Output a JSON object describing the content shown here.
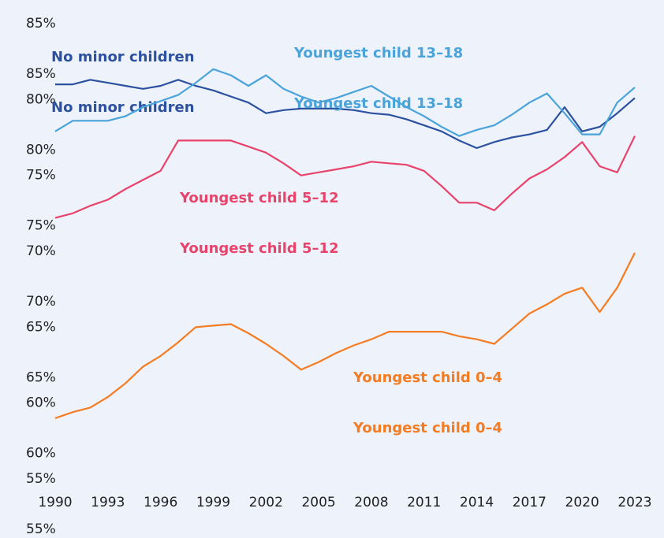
{
  "chart_data": {
    "type": "line",
    "x": [
      1990,
      1991,
      1992,
      1993,
      1994,
      1995,
      1996,
      1997,
      1998,
      1999,
      2000,
      2001,
      2002,
      2003,
      2004,
      2005,
      2006,
      2007,
      2008,
      2009,
      2010,
      2011,
      2012,
      2013,
      2014,
      2015,
      2016,
      2017,
      2018,
      2019,
      2020,
      2021,
      2022,
      2023
    ],
    "xlim": [
      1990,
      2023
    ],
    "xticks": [
      1990,
      1993,
      1996,
      1999,
      2002,
      2005,
      2008,
      2011,
      2014,
      2017,
      2020,
      2023
    ],
    "ylim": [
      55,
      85
    ],
    "yticks": [
      {
        "value": 55,
        "label": "55%"
      },
      {
        "value": 60,
        "label": "60%"
      },
      {
        "value": 65,
        "label": "65%"
      },
      {
        "value": 70,
        "label": "70%"
      },
      {
        "value": 75,
        "label": "75%"
      },
      {
        "value": 80,
        "label": "80%"
      },
      {
        "value": 85,
        "label": "85%"
      }
    ],
    "y2lim": [
      55,
      85
    ],
    "y2ticks": [
      {
        "value": 55,
        "label": "55%"
      },
      {
        "value": 60,
        "label": "60%"
      },
      {
        "value": 65,
        "label": "65%"
      },
      {
        "value": 70,
        "label": "70%"
      },
      {
        "value": 75,
        "label": "75%"
      },
      {
        "value": 80,
        "label": "80%"
      },
      {
        "value": 85,
        "label": "85%"
      }
    ],
    "series": [
      {
        "name": "No minor children",
        "color": "#2b519f",
        "values": [
          81.0,
          81.0,
          81.3,
          81.1,
          80.9,
          80.7,
          80.9,
          81.3,
          80.9,
          80.6,
          80.2,
          79.8,
          79.1,
          79.3,
          79.4,
          79.4,
          79.4,
          79.3,
          79.1,
          79.0,
          78.7,
          78.3,
          77.9,
          77.3,
          76.8,
          77.2,
          77.5,
          77.7,
          78.0,
          79.5,
          77.9,
          78.2,
          79.1,
          80.1
        ]
      },
      {
        "name": "Youngest child 13–18",
        "color": "#4aa4da",
        "values": [
          77.9,
          78.6,
          78.6,
          78.6,
          78.9,
          79.5,
          79.9,
          80.3,
          81.1,
          82.0,
          81.6,
          80.9,
          81.6,
          80.7,
          80.2,
          79.8,
          80.1,
          80.5,
          80.9,
          80.2,
          79.5,
          78.9,
          78.2,
          77.6,
          78.0,
          78.3,
          79.0,
          79.8,
          80.4,
          79.1,
          77.7,
          77.7,
          79.8,
          80.8
        ]
      },
      {
        "name": "Youngest child 5–12",
        "color": "#e8436a",
        "values": [
          72.2,
          72.5,
          73.0,
          73.4,
          74.1,
          74.7,
          75.3,
          77.3,
          77.3,
          77.3,
          77.3,
          76.9,
          76.5,
          75.8,
          75.0,
          75.2,
          75.4,
          75.6,
          75.9,
          75.8,
          75.7,
          75.3,
          74.3,
          73.2,
          73.2,
          72.7,
          73.8,
          74.8,
          75.4,
          76.2,
          77.2,
          75.6,
          75.2,
          77.6
        ]
      },
      {
        "name": "Youngest child 0–4",
        "color": "#f47c22",
        "values": [
          59.0,
          59.4,
          59.7,
          60.4,
          61.3,
          62.4,
          63.1,
          64.0,
          65.0,
          65.1,
          65.2,
          64.6,
          63.9,
          63.1,
          62.2,
          62.7,
          63.3,
          63.8,
          64.2,
          64.7,
          64.7,
          64.7,
          64.7,
          64.4,
          64.2,
          63.9,
          64.9,
          65.9,
          66.5,
          67.2,
          67.6,
          66.0,
          67.6,
          69.9
        ]
      }
    ],
    "grid": false
  }
}
